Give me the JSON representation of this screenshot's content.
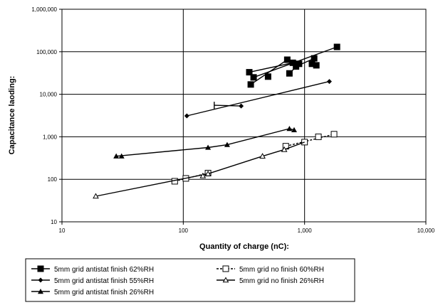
{
  "chart_data": {
    "type": "scatter",
    "title": "",
    "xlabel": "Quantity of charge (nC):",
    "ylabel": "Capacitance laoding:",
    "x_scale": "log",
    "y_scale": "log",
    "xlim": [
      10,
      10000
    ],
    "ylim": [
      10,
      1000000
    ],
    "grid": true,
    "x_ticks": [
      "10",
      "100",
      "1,000",
      "10,000"
    ],
    "y_ticks": [
      "10",
      "100",
      "1,000",
      "10,000",
      "100,000",
      "1,000,000"
    ],
    "legend_position": "bottom",
    "series": [
      {
        "name": "5mm grid antistat finish 62%RH",
        "marker": "square-filled",
        "line": "solid",
        "color": "#000000",
        "points": [
          [
            350,
            33000
          ],
          [
            380,
            25000
          ],
          [
            500,
            26000
          ],
          [
            720,
            65000
          ],
          [
            800,
            55000
          ],
          [
            850,
            45000
          ],
          [
            900,
            52000
          ],
          [
            1150,
            52000
          ],
          [
            1200,
            70000
          ],
          [
            1250,
            48000
          ],
          [
            750,
            31000
          ],
          [
            360,
            17000
          ],
          [
            1850,
            130000
          ]
        ],
        "segments": [
          [
            [
              350,
              33000
            ],
            [
              800,
              55000
            ]
          ],
          [
            [
              360,
              17000
            ],
            [
              720,
              65000
            ]
          ],
          [
            [
              380,
              25000
            ],
            [
              1850,
              130000
            ]
          ],
          [
            [
              750,
              31000
            ],
            [
              900,
              52000
            ]
          ],
          [
            [
              850,
              45000
            ],
            [
              1200,
              70000
            ]
          ],
          [
            [
              1150,
              52000
            ],
            [
              1250,
              48000
            ]
          ]
        ]
      },
      {
        "name": "5mm grid antistat finish 55%RH",
        "marker": "diamond-filled",
        "line": "solid",
        "color": "#000000",
        "points": [
          [
            107,
            3100
          ],
          [
            300,
            5300
          ],
          [
            1600,
            20000
          ]
        ],
        "segments": [
          [
            [
              107,
              3100
            ],
            [
              1600,
              20000
            ]
          ],
          [
            [
              180,
              5500
            ],
            [
              300,
              5300
            ]
          ]
        ]
      },
      {
        "name": "5mm grid antistat finish 26%RH",
        "marker": "triangle-filled",
        "line": "solid",
        "color": "#000000",
        "points": [
          [
            28,
            350
          ],
          [
            31,
            350
          ],
          [
            160,
            560
          ],
          [
            230,
            650
          ],
          [
            750,
            1550
          ],
          [
            820,
            1450
          ]
        ],
        "segments": [
          [
            [
              28,
              350
            ],
            [
              160,
              560
            ],
            [
              230,
              650
            ],
            [
              750,
              1550
            ],
            [
              820,
              1450
            ]
          ]
        ]
      },
      {
        "name": "5mm grid no finish 60%RH",
        "marker": "square-open",
        "line": "dashed",
        "color": "#000000",
        "points": [
          [
            85,
            90
          ],
          [
            105,
            105
          ],
          [
            160,
            140
          ],
          [
            700,
            600
          ],
          [
            1000,
            750
          ],
          [
            1300,
            1000
          ],
          [
            1750,
            1150
          ]
        ],
        "segments": [
          [
            [
              85,
              90
            ],
            [
              160,
              140
            ]
          ],
          [
            [
              700,
              600
            ],
            [
              1750,
              1150
            ]
          ]
        ]
      },
      {
        "name": "5mm grid no finish 26%RH",
        "marker": "triangle-open",
        "line": "solid",
        "color": "#000000",
        "points": [
          [
            19,
            40
          ],
          [
            145,
            120
          ],
          [
            160,
            135
          ],
          [
            450,
            350
          ],
          [
            680,
            500
          ]
        ],
        "segments": [
          [
            [
              19,
              40
            ],
            [
              160,
              135
            ],
            [
              450,
              350
            ],
            [
              680,
              500
            ],
            [
              1000,
              750
            ]
          ]
        ]
      }
    ],
    "legend_order": [
      "5mm grid antistat finish 62%RH",
      "5mm grid no finish 60%RH",
      "5mm grid antistat finish 55%RH",
      "5mm grid no finish 26%RH",
      "5mm grid antistat finish 26%RH"
    ]
  }
}
